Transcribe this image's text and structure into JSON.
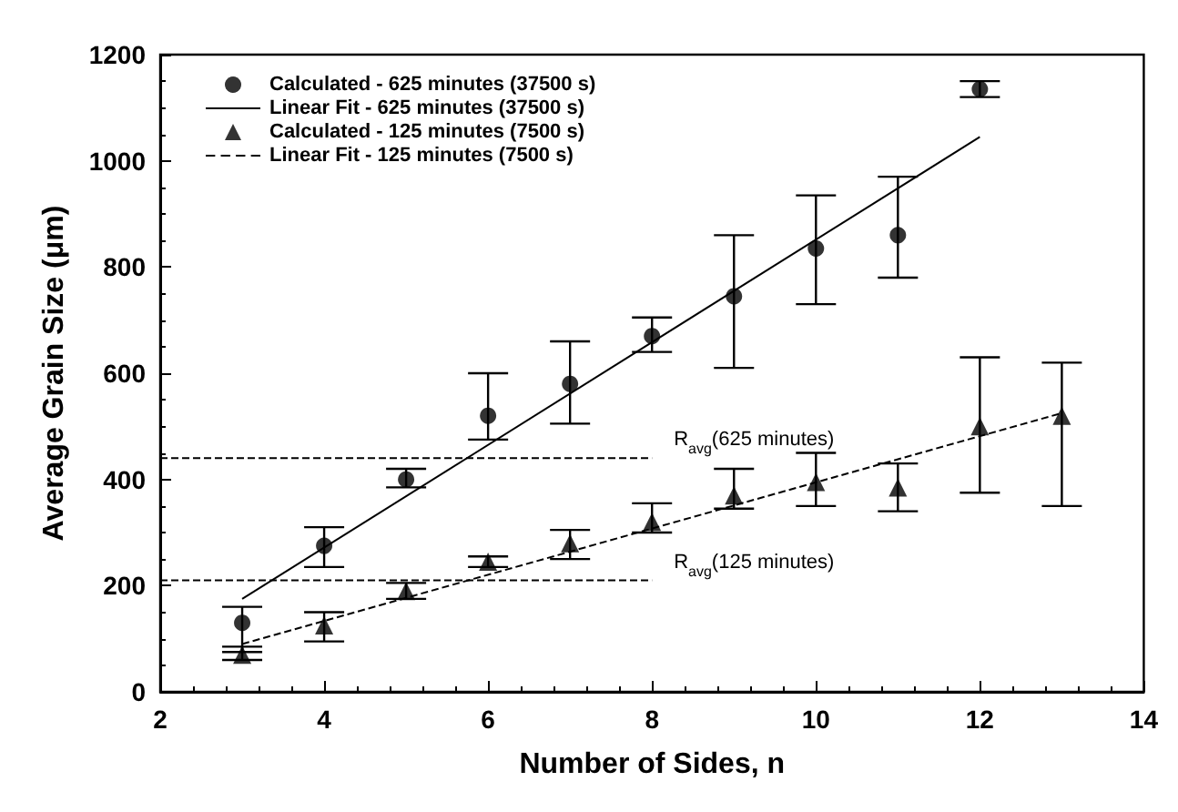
{
  "chart_data": {
    "type": "scatter",
    "xlabel": "Number of Sides, n",
    "ylabel": "Average Grain Size (μm)",
    "xlim": [
      2,
      14
    ],
    "xticks": [
      2,
      4,
      6,
      8,
      10,
      12,
      14
    ],
    "ylim": [
      0,
      1200
    ],
    "yticks": [
      0,
      200,
      400,
      600,
      800,
      1000,
      1200
    ],
    "grid": false,
    "legend": "top left",
    "series": [
      {
        "name": "Calculated - 625 minutes (37500 s)",
        "marker": "circle",
        "color": "#000000",
        "x": [
          3,
          4,
          5,
          6,
          7,
          8,
          9,
          10,
          11,
          12
        ],
        "values": [
          130,
          275,
          400,
          520,
          580,
          670,
          745,
          835,
          860,
          1135
        ],
        "errors": [
          [
            75,
            160
          ],
          [
            235,
            310
          ],
          [
            385,
            420
          ],
          [
            475,
            600
          ],
          [
            505,
            660
          ],
          [
            640,
            705
          ],
          [
            610,
            860
          ],
          [
            730,
            935
          ],
          [
            780,
            970
          ],
          [
            1120,
            1150
          ]
        ]
      },
      {
        "name": "Linear Fit - 625 minutes (37500 s)",
        "type": "line",
        "marker": "none",
        "line_style": "solid",
        "color": "#000000",
        "x": [
          3,
          12
        ],
        "values": [
          175,
          1045
        ]
      },
      {
        "name": "Calculated - 125 minutes (7500 s)",
        "marker": "triangle",
        "color": "#000000",
        "x": [
          3,
          4,
          5,
          6,
          7,
          8,
          9,
          10,
          11,
          12,
          13
        ],
        "values": [
          70,
          125,
          190,
          245,
          280,
          320,
          370,
          395,
          385,
          500,
          520
        ],
        "errors": [
          [
            60,
            85
          ],
          [
            95,
            150
          ],
          [
            175,
            205
          ],
          [
            235,
            255
          ],
          [
            250,
            305
          ],
          [
            300,
            355
          ],
          [
            345,
            420
          ],
          [
            350,
            450
          ],
          [
            340,
            430
          ],
          [
            375,
            630
          ],
          [
            350,
            620
          ]
        ]
      },
      {
        "name": "Linear Fit - 125 minutes (7500 s)",
        "type": "line",
        "marker": "none",
        "line_style": "dashed",
        "color": "#000000",
        "x": [
          3,
          13
        ],
        "values": [
          90,
          525
        ]
      }
    ],
    "ref_lines": [
      {
        "axis": "y",
        "value": 440,
        "label": "R$_{avg}$(625 minutes)",
        "line_style": "dashed",
        "color": "#000000"
      },
      {
        "axis": "y",
        "value": 210,
        "label": "R$_{avg}$(125 minutes)",
        "line_style": "dashed",
        "color": "#000000"
      }
    ]
  }
}
